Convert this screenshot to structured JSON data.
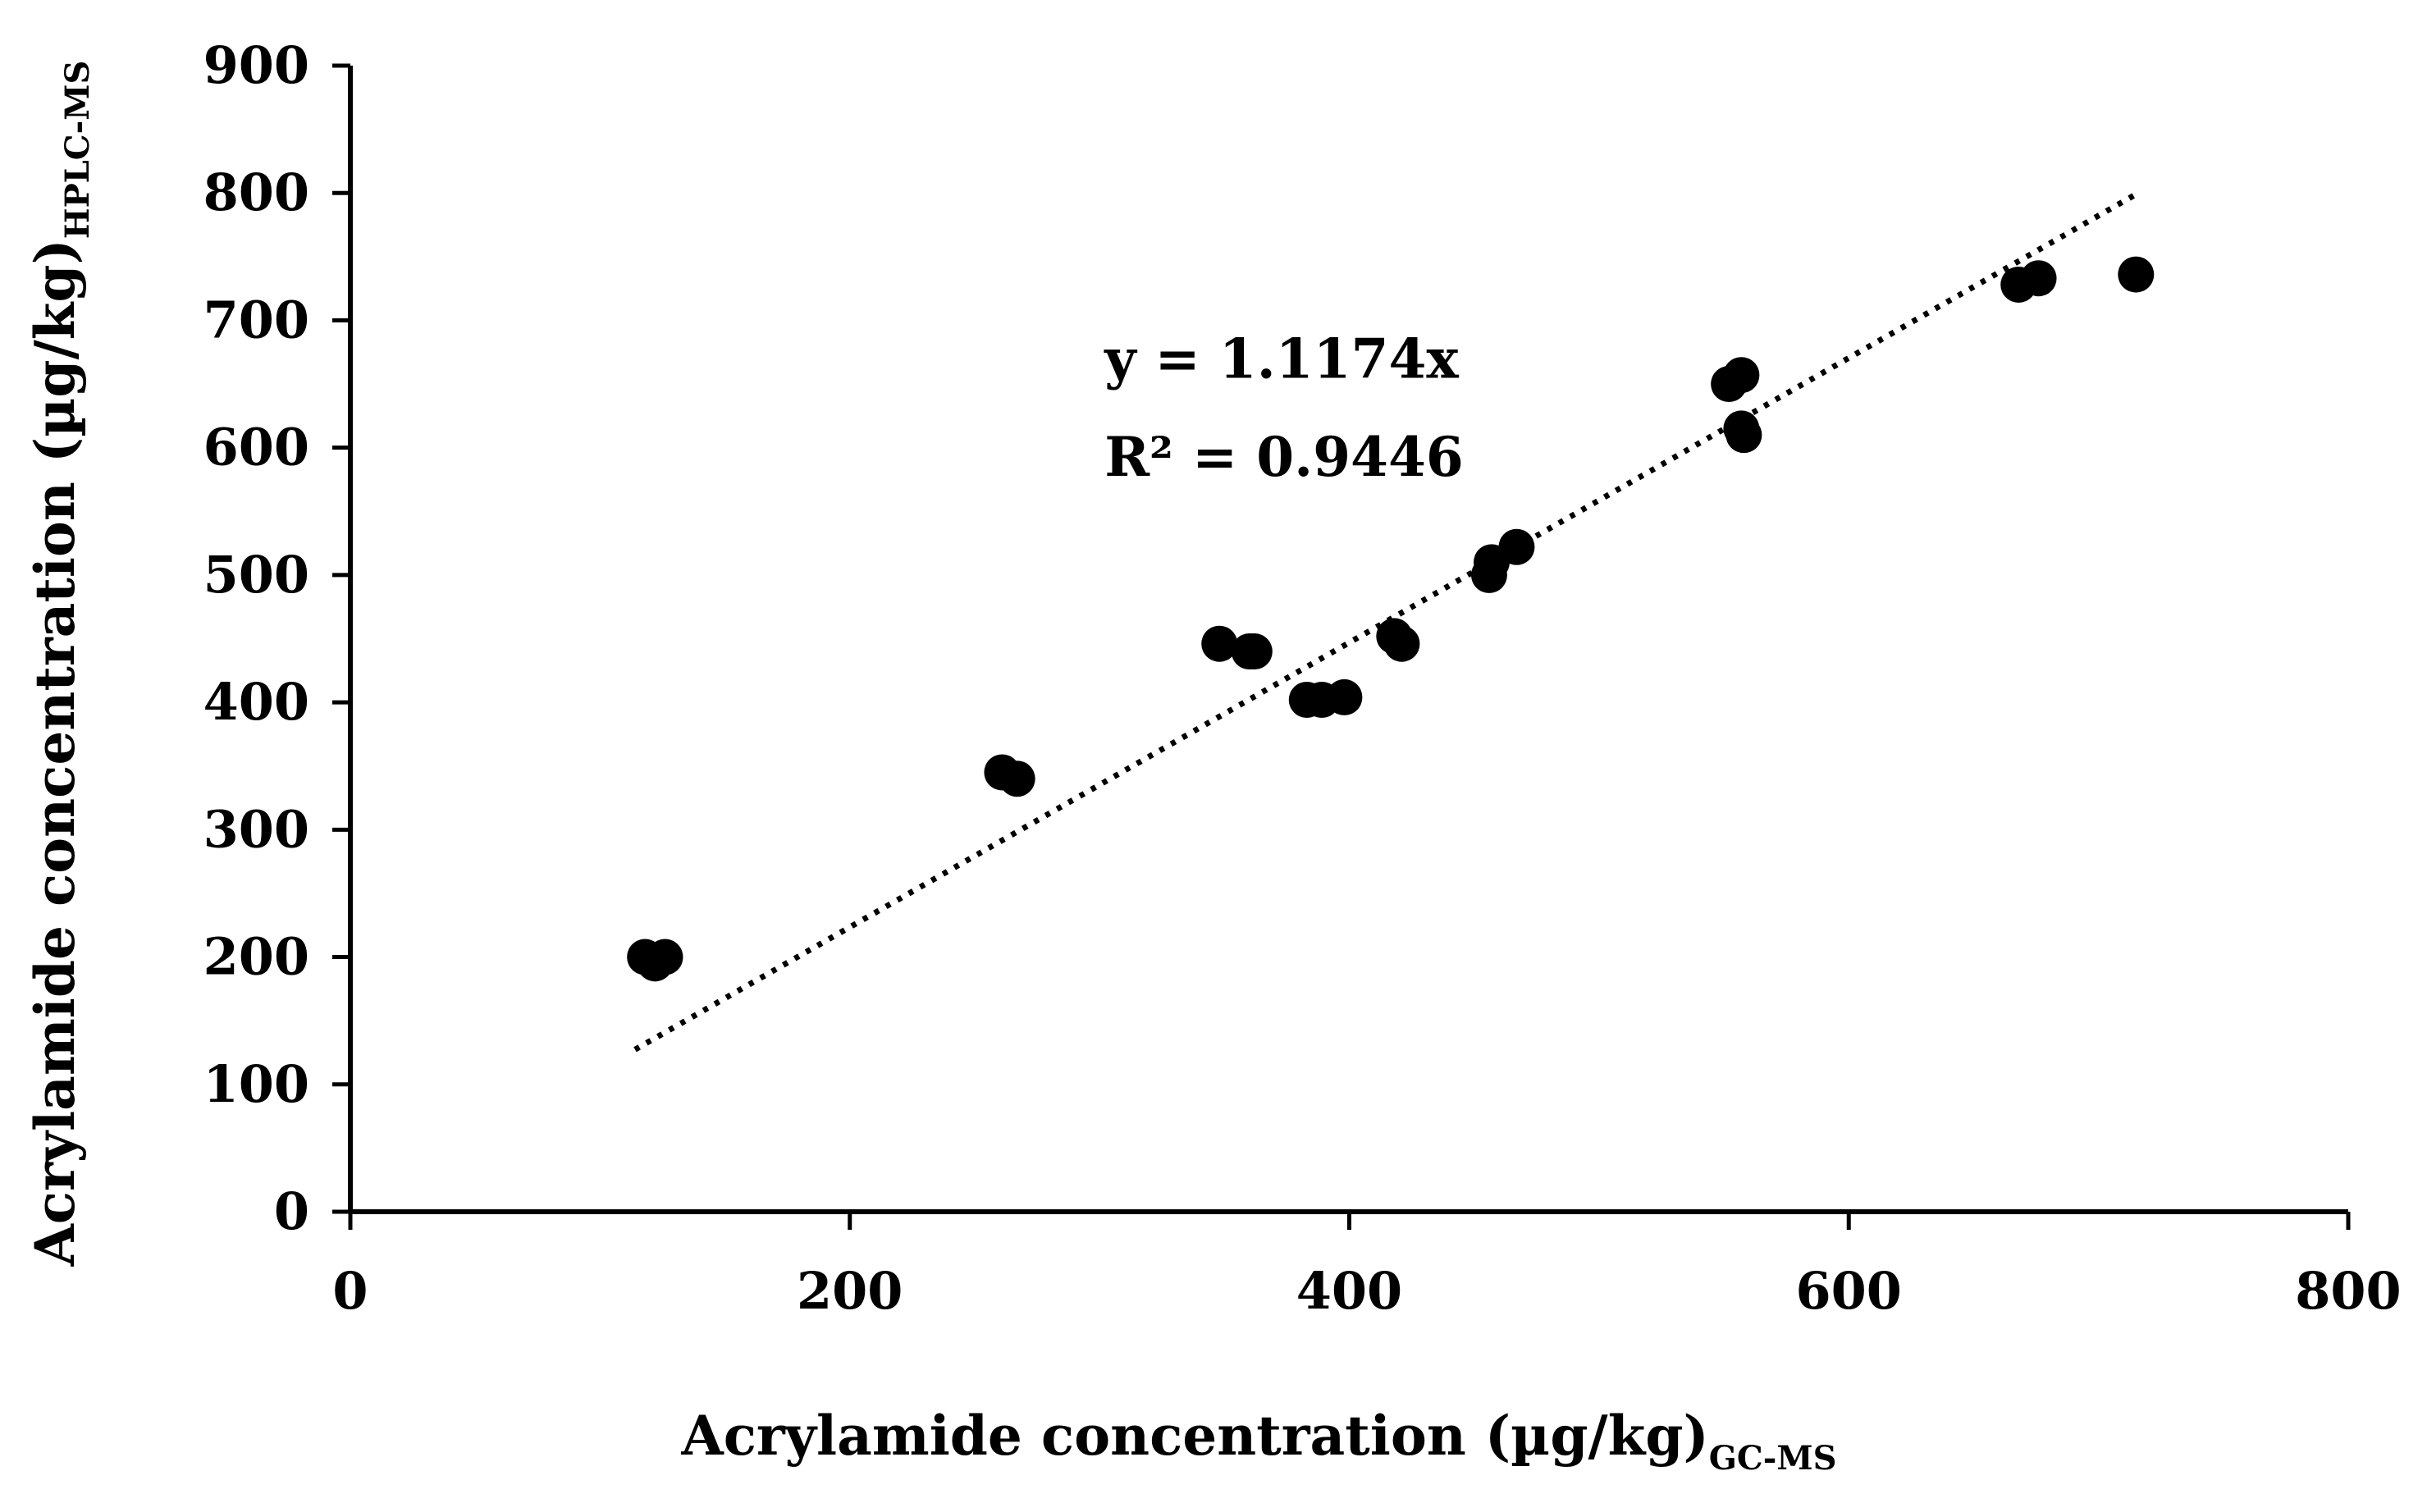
{
  "chart_data": {
    "type": "scatter",
    "title": "",
    "xlabel": {
      "main": "Acrylamide concentration (µg/kg)",
      "subscript": "GC-MS"
    },
    "ylabel": {
      "main": "Acrylamide concentration (µg/kg)",
      "subscript": "HPLC-MS"
    },
    "xlim": [
      0,
      800
    ],
    "ylim": [
      0,
      900
    ],
    "xticks": [
      0,
      200,
      400,
      600,
      800
    ],
    "yticks": [
      0,
      100,
      200,
      300,
      400,
      500,
      600,
      700,
      800,
      900
    ],
    "xtick_labels": [
      "0",
      "200",
      "400",
      "600",
      "800"
    ],
    "ytick_labels": [
      "0",
      "100",
      "200",
      "300",
      "400",
      "500",
      "600",
      "700",
      "800",
      "900"
    ],
    "grid": false,
    "legend": "none",
    "marker_color": "#000000",
    "series": [
      {
        "points": [
          [
            118,
            200
          ],
          [
            122,
            195
          ],
          [
            126,
            200
          ],
          [
            261,
            345
          ],
          [
            267,
            340
          ],
          [
            348,
            446
          ],
          [
            360,
            440
          ],
          [
            362,
            440
          ],
          [
            383,
            402
          ],
          [
            389,
            402
          ],
          [
            398,
            404
          ],
          [
            418,
            452
          ],
          [
            421,
            446
          ],
          [
            456,
            500
          ],
          [
            457,
            510
          ],
          [
            467,
            522
          ],
          [
            552,
            650
          ],
          [
            557,
            657
          ],
          [
            557,
            615
          ],
          [
            558,
            610
          ],
          [
            668,
            728
          ],
          [
            676,
            733
          ],
          [
            715,
            736
          ]
        ]
      }
    ],
    "trendline": {
      "style": "dotted",
      "slope": 1.1174,
      "intercept": 0,
      "x_range": [
        114,
        714
      ],
      "equation": "y = 1.1174x",
      "r_squared": "R² = 0.9446"
    }
  }
}
